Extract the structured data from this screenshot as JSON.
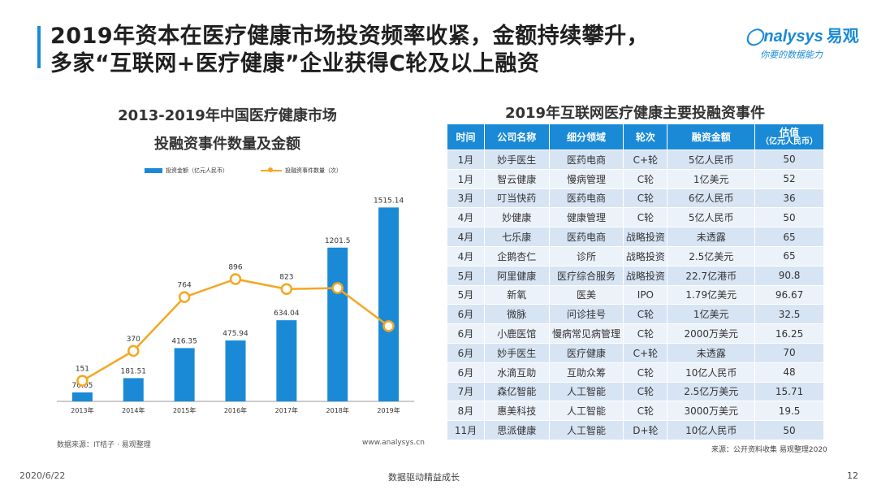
{
  "header": {
    "title_line1": "2019年资本在医疗健康市场投资频率收紧，金额持续攀升，",
    "title_line2": "多家“互联网+医疗健康”企业获得C轮及以上融资",
    "logo_brand": "nalysys",
    "logo_brand_cn": "易观",
    "logo_slogan": "你要的数据能力"
  },
  "chart": {
    "title_line1": "2013-2019年中国医疗健康市场",
    "title_line2": "投融资事件数量及金额",
    "source": "数据来源：IT桔子 · 易观整理",
    "url": "www.analysys.cn"
  },
  "chart_data": {
    "type": "bar",
    "categories": [
      "2013年",
      "2014年",
      "2015年",
      "2016年",
      "2017年",
      "2018年",
      "2019年"
    ],
    "series": [
      {
        "name": "投资金额（亿元人民币）",
        "type": "bar",
        "values": [
          70.05,
          181.51,
          416.35,
          475.94,
          634.04,
          1201.5,
          1515.14
        ],
        "labels": [
          "70.05",
          "181.51",
          "416.35",
          "475.94",
          "634.04",
          "1201.5",
          "1515.14"
        ]
      },
      {
        "name": "投融资事件数量（次）",
        "type": "line",
        "values": [
          151,
          370,
          764,
          896,
          823,
          830,
          551
        ],
        "labels": [
          "151",
          "370",
          "764",
          "896",
          "823",
          "",
          ""
        ]
      }
    ],
    "bar_ylim": [
      0,
      1600
    ],
    "line_ylim": [
      0,
      1500
    ],
    "colors": {
      "bar": "#1a8ad6",
      "line": "#f5a623"
    },
    "legend": "top-left",
    "grid": false
  },
  "table": {
    "title": "2019年互联网医疗健康主要投融资事件",
    "headers": [
      "时间",
      "公司名称",
      "细分领域",
      "轮次",
      "融资金额",
      "估值"
    ],
    "header_valuation_sub": "（亿元人民币）",
    "rows": [
      [
        "1月",
        "妙手医生",
        "医药电商",
        "C+轮",
        "5亿人民币",
        "50"
      ],
      [
        "1月",
        "智云健康",
        "慢病管理",
        "C轮",
        "1亿美元",
        "52"
      ],
      [
        "3月",
        "叮当快药",
        "医药电商",
        "C轮",
        "6亿人民币",
        "36"
      ],
      [
        "4月",
        "妙健康",
        "健康管理",
        "C轮",
        "5亿人民币",
        "50"
      ],
      [
        "4月",
        "七乐康",
        "医药电商",
        "战略投资",
        "未透露",
        "65"
      ],
      [
        "4月",
        "企鹅杏仁",
        "诊所",
        "战略投资",
        "2.5亿美元",
        "65"
      ],
      [
        "5月",
        "阿里健康",
        "医疗综合服务",
        "战略投资",
        "22.7亿港币",
        "90.8"
      ],
      [
        "5月",
        "新氧",
        "医美",
        "IPO",
        "1.79亿美元",
        "96.67"
      ],
      [
        "6月",
        "微脉",
        "问诊挂号",
        "C轮",
        "1亿美元",
        "32.5"
      ],
      [
        "6月",
        "小鹿医馆",
        "慢病常见病管理",
        "C轮",
        "2000万美元",
        "16.25"
      ],
      [
        "6月",
        "妙手医生",
        "医疗健康",
        "C+轮",
        "未透露",
        "70"
      ],
      [
        "6月",
        "水滴互助",
        "互助众筹",
        "C轮",
        "10亿人民币",
        "48"
      ],
      [
        "7月",
        "森亿智能",
        "人工智能",
        "C轮",
        "2.5亿万美元",
        "15.71"
      ],
      [
        "8月",
        "惠美科技",
        "人工智能",
        "C轮",
        "3000万美元",
        "19.5"
      ],
      [
        "11月",
        "思派健康",
        "人工智能",
        "D+轮",
        "10亿人民币",
        "50"
      ]
    ],
    "source": "来源：公开资料收集 易观整理2020"
  },
  "footer": {
    "date": "2020/6/22",
    "center": "数据驱动精益成长",
    "page": "12"
  }
}
